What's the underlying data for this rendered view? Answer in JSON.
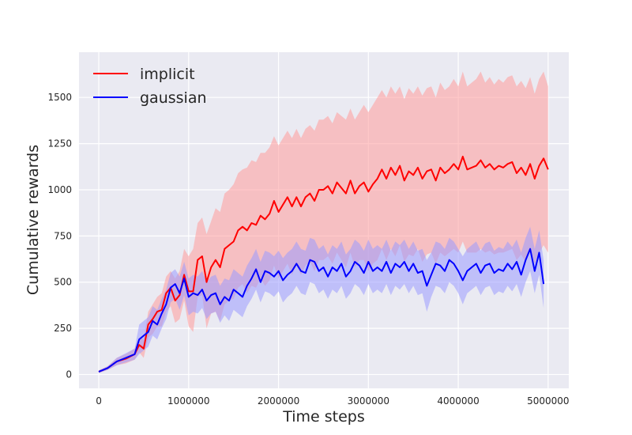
{
  "chart_data": {
    "type": "line",
    "title": "",
    "xlabel": "Time steps",
    "ylabel": "Cumulative rewards",
    "xlim": [
      -220000,
      5230000
    ],
    "ylim": [
      -75,
      1745
    ],
    "xticks": [
      0,
      1000000,
      2000000,
      3000000,
      4000000,
      5000000
    ],
    "xtick_labels": [
      "0",
      "1000000",
      "2000000",
      "3000000",
      "4000000",
      "5000000"
    ],
    "yticks": [
      0,
      250,
      500,
      750,
      1000,
      1250,
      1500
    ],
    "ytick_labels": [
      "0",
      "250",
      "500",
      "750",
      "1000",
      "1250",
      "1500"
    ],
    "grid": true,
    "legend_position": "top-left",
    "band": "shaded range around each mean line",
    "series": [
      {
        "name": "implicit",
        "color": "#ff0000",
        "band_color": "#ff9a9a",
        "x": [
          0,
          100000,
          200000,
          300000,
          400000,
          450000,
          500000,
          550000,
          600000,
          650000,
          700000,
          750000,
          800000,
          850000,
          900000,
          950000,
          1000000,
          1050000,
          1100000,
          1150000,
          1200000,
          1250000,
          1300000,
          1350000,
          1400000,
          1450000,
          1500000,
          1550000,
          1600000,
          1650000,
          1700000,
          1750000,
          1800000,
          1850000,
          1900000,
          1950000,
          2000000,
          2050000,
          2100000,
          2150000,
          2200000,
          2250000,
          2300000,
          2350000,
          2400000,
          2450000,
          2500000,
          2550000,
          2600000,
          2650000,
          2700000,
          2750000,
          2800000,
          2850000,
          2900000,
          2950000,
          3000000,
          3050000,
          3100000,
          3150000,
          3200000,
          3250000,
          3300000,
          3350000,
          3400000,
          3450000,
          3500000,
          3550000,
          3600000,
          3650000,
          3700000,
          3750000,
          3800000,
          3850000,
          3900000,
          3950000,
          4000000,
          4050000,
          4100000,
          4150000,
          4200000,
          4250000,
          4300000,
          4350000,
          4400000,
          4450000,
          4500000,
          4550000,
          4600000,
          4650000,
          4700000,
          4750000,
          4800000,
          4850000,
          4900000,
          4950000,
          5000000
        ],
        "values": [
          15,
          35,
          70,
          85,
          110,
          160,
          140,
          270,
          300,
          340,
          350,
          440,
          470,
          400,
          430,
          540,
          450,
          450,
          620,
          640,
          500,
          580,
          620,
          580,
          680,
          700,
          720,
          780,
          800,
          780,
          820,
          810,
          860,
          840,
          870,
          940,
          880,
          920,
          960,
          910,
          960,
          910,
          960,
          980,
          940,
          1000,
          1000,
          1020,
          980,
          1040,
          1010,
          980,
          1050,
          980,
          1020,
          1040,
          990,
          1030,
          1060,
          1110,
          1060,
          1120,
          1080,
          1130,
          1050,
          1100,
          1080,
          1120,
          1060,
          1100,
          1110,
          1050,
          1120,
          1090,
          1110,
          1140,
          1110,
          1180,
          1110,
          1120,
          1130,
          1160,
          1120,
          1140,
          1110,
          1130,
          1120,
          1140,
          1150,
          1090,
          1120,
          1080,
          1140,
          1060,
          1130,
          1170,
          1110
        ],
        "upper": [
          22,
          45,
          90,
          110,
          140,
          200,
          190,
          340,
          380,
          420,
          440,
          530,
          560,
          520,
          560,
          680,
          640,
          680,
          820,
          850,
          760,
          830,
          900,
          880,
          980,
          1000,
          1030,
          1090,
          1110,
          1120,
          1160,
          1150,
          1200,
          1200,
          1230,
          1290,
          1240,
          1280,
          1320,
          1280,
          1330,
          1280,
          1330,
          1350,
          1320,
          1380,
          1380,
          1400,
          1360,
          1420,
          1400,
          1380,
          1440,
          1380,
          1420,
          1460,
          1420,
          1460,
          1500,
          1540,
          1500,
          1560,
          1520,
          1560,
          1490,
          1550,
          1520,
          1560,
          1510,
          1550,
          1560,
          1500,
          1580,
          1540,
          1560,
          1600,
          1560,
          1640,
          1560,
          1580,
          1600,
          1640,
          1580,
          1610,
          1570,
          1600,
          1580,
          1610,
          1620,
          1560,
          1590,
          1550,
          1610,
          1520,
          1600,
          1640,
          1560
        ],
        "lower": [
          8,
          25,
          50,
          60,
          80,
          120,
          90,
          200,
          220,
          260,
          260,
          340,
          370,
          280,
          300,
          400,
          260,
          230,
          420,
          430,
          250,
          330,
          340,
          290,
          380,
          400,
          410,
          470,
          490,
          440,
          480,
          470,
          520,
          480,
          510,
          590,
          520,
          560,
          600,
          540,
          590,
          540,
          590,
          610,
          560,
          620,
          620,
          640,
          600,
          660,
          620,
          580,
          660,
          580,
          620,
          620,
          560,
          600,
          620,
          680,
          620,
          680,
          640,
          700,
          610,
          650,
          640,
          680,
          610,
          650,
          660,
          600,
          660,
          640,
          660,
          680,
          660,
          720,
          660,
          660,
          660,
          680,
          660,
          670,
          650,
          660,
          660,
          670,
          680,
          620,
          650,
          610,
          670,
          600,
          660,
          700,
          660
        ]
      },
      {
        "name": "gaussian",
        "color": "#0000ff",
        "band_color": "#9a9aff",
        "x": [
          0,
          100000,
          200000,
          300000,
          400000,
          450000,
          500000,
          550000,
          600000,
          650000,
          700000,
          750000,
          800000,
          850000,
          900000,
          950000,
          1000000,
          1050000,
          1100000,
          1150000,
          1200000,
          1250000,
          1300000,
          1350000,
          1400000,
          1450000,
          1500000,
          1550000,
          1600000,
          1650000,
          1700000,
          1750000,
          1800000,
          1850000,
          1900000,
          1950000,
          2000000,
          2050000,
          2100000,
          2150000,
          2200000,
          2250000,
          2300000,
          2350000,
          2400000,
          2450000,
          2500000,
          2550000,
          2600000,
          2650000,
          2700000,
          2750000,
          2800000,
          2850000,
          2900000,
          2950000,
          3000000,
          3050000,
          3100000,
          3150000,
          3200000,
          3250000,
          3300000,
          3350000,
          3400000,
          3450000,
          3500000,
          3550000,
          3600000,
          3650000,
          3700000,
          3750000,
          3800000,
          3850000,
          3900000,
          3950000,
          4000000,
          4050000,
          4100000,
          4150000,
          4200000,
          4250000,
          4300000,
          4350000,
          4400000,
          4450000,
          4500000,
          4550000,
          4600000,
          4650000,
          4700000,
          4750000,
          4800000,
          4850000,
          4900000,
          4950000
        ],
        "values": [
          15,
          35,
          70,
          90,
          110,
          190,
          210,
          230,
          290,
          270,
          330,
          380,
          470,
          490,
          440,
          520,
          420,
          440,
          430,
          460,
          400,
          430,
          440,
          380,
          420,
          400,
          460,
          440,
          420,
          480,
          520,
          570,
          500,
          560,
          550,
          530,
          560,
          510,
          540,
          560,
          600,
          560,
          550,
          620,
          610,
          560,
          580,
          530,
          580,
          560,
          600,
          530,
          560,
          610,
          590,
          550,
          610,
          560,
          580,
          560,
          610,
          550,
          600,
          580,
          610,
          560,
          600,
          550,
          560,
          480,
          540,
          600,
          590,
          560,
          620,
          600,
          560,
          510,
          560,
          580,
          600,
          550,
          590,
          600,
          550,
          570,
          560,
          600,
          570,
          610,
          540,
          620,
          680,
          560,
          660,
          490
        ],
        "upper": [
          22,
          45,
          90,
          115,
          140,
          270,
          290,
          310,
          370,
          350,
          410,
          460,
          550,
          570,
          530,
          610,
          520,
          540,
          530,
          560,
          500,
          530,
          540,
          480,
          520,
          510,
          570,
          550,
          530,
          590,
          630,
          680,
          610,
          670,
          660,
          640,
          670,
          630,
          660,
          680,
          720,
          680,
          670,
          740,
          730,
          680,
          700,
          650,
          700,
          680,
          720,
          650,
          680,
          730,
          710,
          670,
          730,
          680,
          700,
          680,
          730,
          670,
          720,
          700,
          730,
          680,
          720,
          670,
          680,
          620,
          660,
          720,
          710,
          680,
          740,
          720,
          680,
          640,
          680,
          700,
          720,
          670,
          710,
          720,
          670,
          690,
          680,
          720,
          690,
          730,
          660,
          740,
          800,
          680,
          780,
          620
        ],
        "lower": [
          8,
          25,
          50,
          65,
          80,
          110,
          130,
          150,
          210,
          190,
          250,
          300,
          390,
          410,
          350,
          430,
          320,
          340,
          330,
          360,
          300,
          330,
          340,
          280,
          320,
          290,
          350,
          330,
          310,
          370,
          410,
          460,
          390,
          450,
          440,
          420,
          450,
          390,
          420,
          440,
          480,
          440,
          430,
          500,
          490,
          440,
          460,
          410,
          460,
          440,
          480,
          410,
          440,
          490,
          470,
          430,
          490,
          440,
          460,
          440,
          490,
          430,
          480,
          460,
          490,
          440,
          480,
          430,
          440,
          340,
          420,
          480,
          470,
          440,
          500,
          480,
          440,
          380,
          440,
          460,
          480,
          430,
          470,
          480,
          430,
          450,
          440,
          480,
          450,
          490,
          420,
          500,
          560,
          440,
          540,
          360
        ]
      }
    ]
  }
}
